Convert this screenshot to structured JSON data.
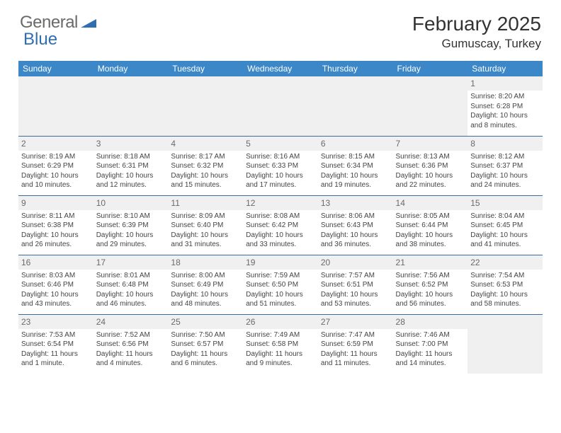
{
  "brand": {
    "part1": "General",
    "part2": "Blue"
  },
  "month_title": "February 2025",
  "location": "Gumuscay, Turkey",
  "header_color": "#3b87c8",
  "divider_color": "#3b6d9c",
  "empty_bg": "#f0f0f0",
  "day_headers": [
    "Sunday",
    "Monday",
    "Tuesday",
    "Wednesday",
    "Thursday",
    "Friday",
    "Saturday"
  ],
  "weeks": [
    [
      null,
      null,
      null,
      null,
      null,
      null,
      {
        "n": "1",
        "sr": "Sunrise: 8:20 AM",
        "ss": "Sunset: 6:28 PM",
        "dl": "Daylight: 10 hours and 8 minutes."
      }
    ],
    [
      {
        "n": "2",
        "sr": "Sunrise: 8:19 AM",
        "ss": "Sunset: 6:29 PM",
        "dl": "Daylight: 10 hours and 10 minutes."
      },
      {
        "n": "3",
        "sr": "Sunrise: 8:18 AM",
        "ss": "Sunset: 6:31 PM",
        "dl": "Daylight: 10 hours and 12 minutes."
      },
      {
        "n": "4",
        "sr": "Sunrise: 8:17 AM",
        "ss": "Sunset: 6:32 PM",
        "dl": "Daylight: 10 hours and 15 minutes."
      },
      {
        "n": "5",
        "sr": "Sunrise: 8:16 AM",
        "ss": "Sunset: 6:33 PM",
        "dl": "Daylight: 10 hours and 17 minutes."
      },
      {
        "n": "6",
        "sr": "Sunrise: 8:15 AM",
        "ss": "Sunset: 6:34 PM",
        "dl": "Daylight: 10 hours and 19 minutes."
      },
      {
        "n": "7",
        "sr": "Sunrise: 8:13 AM",
        "ss": "Sunset: 6:36 PM",
        "dl": "Daylight: 10 hours and 22 minutes."
      },
      {
        "n": "8",
        "sr": "Sunrise: 8:12 AM",
        "ss": "Sunset: 6:37 PM",
        "dl": "Daylight: 10 hours and 24 minutes."
      }
    ],
    [
      {
        "n": "9",
        "sr": "Sunrise: 8:11 AM",
        "ss": "Sunset: 6:38 PM",
        "dl": "Daylight: 10 hours and 26 minutes."
      },
      {
        "n": "10",
        "sr": "Sunrise: 8:10 AM",
        "ss": "Sunset: 6:39 PM",
        "dl": "Daylight: 10 hours and 29 minutes."
      },
      {
        "n": "11",
        "sr": "Sunrise: 8:09 AM",
        "ss": "Sunset: 6:40 PM",
        "dl": "Daylight: 10 hours and 31 minutes."
      },
      {
        "n": "12",
        "sr": "Sunrise: 8:08 AM",
        "ss": "Sunset: 6:42 PM",
        "dl": "Daylight: 10 hours and 33 minutes."
      },
      {
        "n": "13",
        "sr": "Sunrise: 8:06 AM",
        "ss": "Sunset: 6:43 PM",
        "dl": "Daylight: 10 hours and 36 minutes."
      },
      {
        "n": "14",
        "sr": "Sunrise: 8:05 AM",
        "ss": "Sunset: 6:44 PM",
        "dl": "Daylight: 10 hours and 38 minutes."
      },
      {
        "n": "15",
        "sr": "Sunrise: 8:04 AM",
        "ss": "Sunset: 6:45 PM",
        "dl": "Daylight: 10 hours and 41 minutes."
      }
    ],
    [
      {
        "n": "16",
        "sr": "Sunrise: 8:03 AM",
        "ss": "Sunset: 6:46 PM",
        "dl": "Daylight: 10 hours and 43 minutes."
      },
      {
        "n": "17",
        "sr": "Sunrise: 8:01 AM",
        "ss": "Sunset: 6:48 PM",
        "dl": "Daylight: 10 hours and 46 minutes."
      },
      {
        "n": "18",
        "sr": "Sunrise: 8:00 AM",
        "ss": "Sunset: 6:49 PM",
        "dl": "Daylight: 10 hours and 48 minutes."
      },
      {
        "n": "19",
        "sr": "Sunrise: 7:59 AM",
        "ss": "Sunset: 6:50 PM",
        "dl": "Daylight: 10 hours and 51 minutes."
      },
      {
        "n": "20",
        "sr": "Sunrise: 7:57 AM",
        "ss": "Sunset: 6:51 PM",
        "dl": "Daylight: 10 hours and 53 minutes."
      },
      {
        "n": "21",
        "sr": "Sunrise: 7:56 AM",
        "ss": "Sunset: 6:52 PM",
        "dl": "Daylight: 10 hours and 56 minutes."
      },
      {
        "n": "22",
        "sr": "Sunrise: 7:54 AM",
        "ss": "Sunset: 6:53 PM",
        "dl": "Daylight: 10 hours and 58 minutes."
      }
    ],
    [
      {
        "n": "23",
        "sr": "Sunrise: 7:53 AM",
        "ss": "Sunset: 6:54 PM",
        "dl": "Daylight: 11 hours and 1 minute."
      },
      {
        "n": "24",
        "sr": "Sunrise: 7:52 AM",
        "ss": "Sunset: 6:56 PM",
        "dl": "Daylight: 11 hours and 4 minutes."
      },
      {
        "n": "25",
        "sr": "Sunrise: 7:50 AM",
        "ss": "Sunset: 6:57 PM",
        "dl": "Daylight: 11 hours and 6 minutes."
      },
      {
        "n": "26",
        "sr": "Sunrise: 7:49 AM",
        "ss": "Sunset: 6:58 PM",
        "dl": "Daylight: 11 hours and 9 minutes."
      },
      {
        "n": "27",
        "sr": "Sunrise: 7:47 AM",
        "ss": "Sunset: 6:59 PM",
        "dl": "Daylight: 11 hours and 11 minutes."
      },
      {
        "n": "28",
        "sr": "Sunrise: 7:46 AM",
        "ss": "Sunset: 7:00 PM",
        "dl": "Daylight: 11 hours and 14 minutes."
      },
      null
    ]
  ]
}
